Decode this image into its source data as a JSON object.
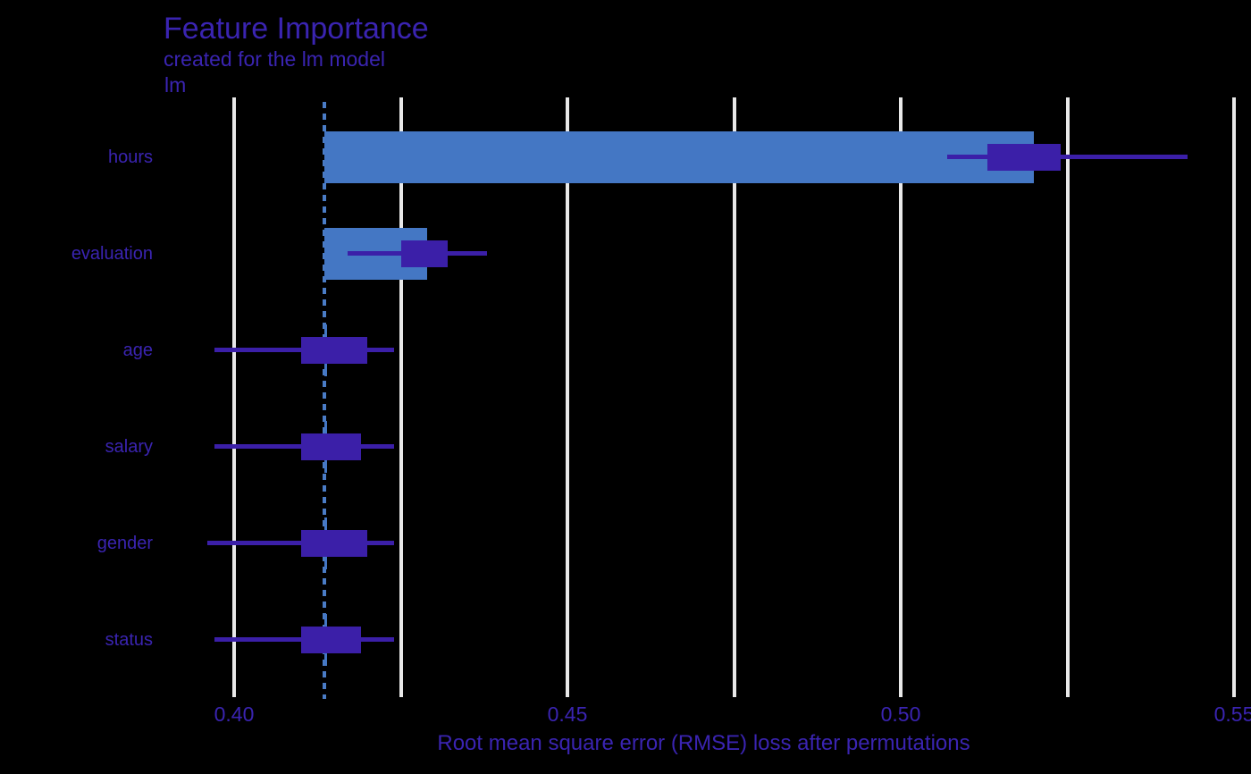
{
  "chart_data": {
    "type": "bar",
    "title": "Feature Importance",
    "subtitle": "created for the lm model",
    "facet_label": "lm",
    "xlabel": "Root mean square error (RMSE) loss after permutations",
    "ylabel": "",
    "legend": "none",
    "grid": "vertical-only",
    "baseline_value": 0.4135,
    "xlim": [
      0.39,
      0.553
    ],
    "x_ticks": [
      {
        "value": 0.4,
        "label": "0.40"
      },
      {
        "value": 0.425,
        "label": ""
      },
      {
        "value": 0.45,
        "label": "0.45"
      },
      {
        "value": 0.475,
        "label": ""
      },
      {
        "value": 0.5,
        "label": "0.50"
      },
      {
        "value": 0.525,
        "label": ""
      },
      {
        "value": 0.55,
        "label": "0.55"
      }
    ],
    "categories": [
      "hours",
      "evaluation",
      "age",
      "salary",
      "gender",
      "status"
    ],
    "features": [
      {
        "name": "hours",
        "bar_end": 0.52,
        "box_low": 0.513,
        "box_high": 0.524,
        "whisker_low": 0.507,
        "whisker_high": 0.543
      },
      {
        "name": "evaluation",
        "bar_end": 0.429,
        "box_low": 0.425,
        "box_high": 0.432,
        "whisker_low": 0.417,
        "whisker_high": 0.438
      },
      {
        "name": "age",
        "bar_end": 0.414,
        "box_low": 0.41,
        "box_high": 0.42,
        "whisker_low": 0.397,
        "whisker_high": 0.424
      },
      {
        "name": "salary",
        "bar_end": 0.414,
        "box_low": 0.41,
        "box_high": 0.419,
        "whisker_low": 0.397,
        "whisker_high": 0.424
      },
      {
        "name": "gender",
        "bar_end": 0.414,
        "box_low": 0.41,
        "box_high": 0.42,
        "whisker_low": 0.396,
        "whisker_high": 0.424
      },
      {
        "name": "status",
        "bar_end": 0.414,
        "box_low": 0.41,
        "box_high": 0.419,
        "whisker_low": 0.397,
        "whisker_high": 0.424
      }
    ],
    "colors": {
      "bar": "#4477c4",
      "box": "#3b1fa8",
      "baseline": "#4a7cc6",
      "gridline": "#e8e8e8",
      "text": "#3a24b1",
      "background": "#000000"
    }
  }
}
